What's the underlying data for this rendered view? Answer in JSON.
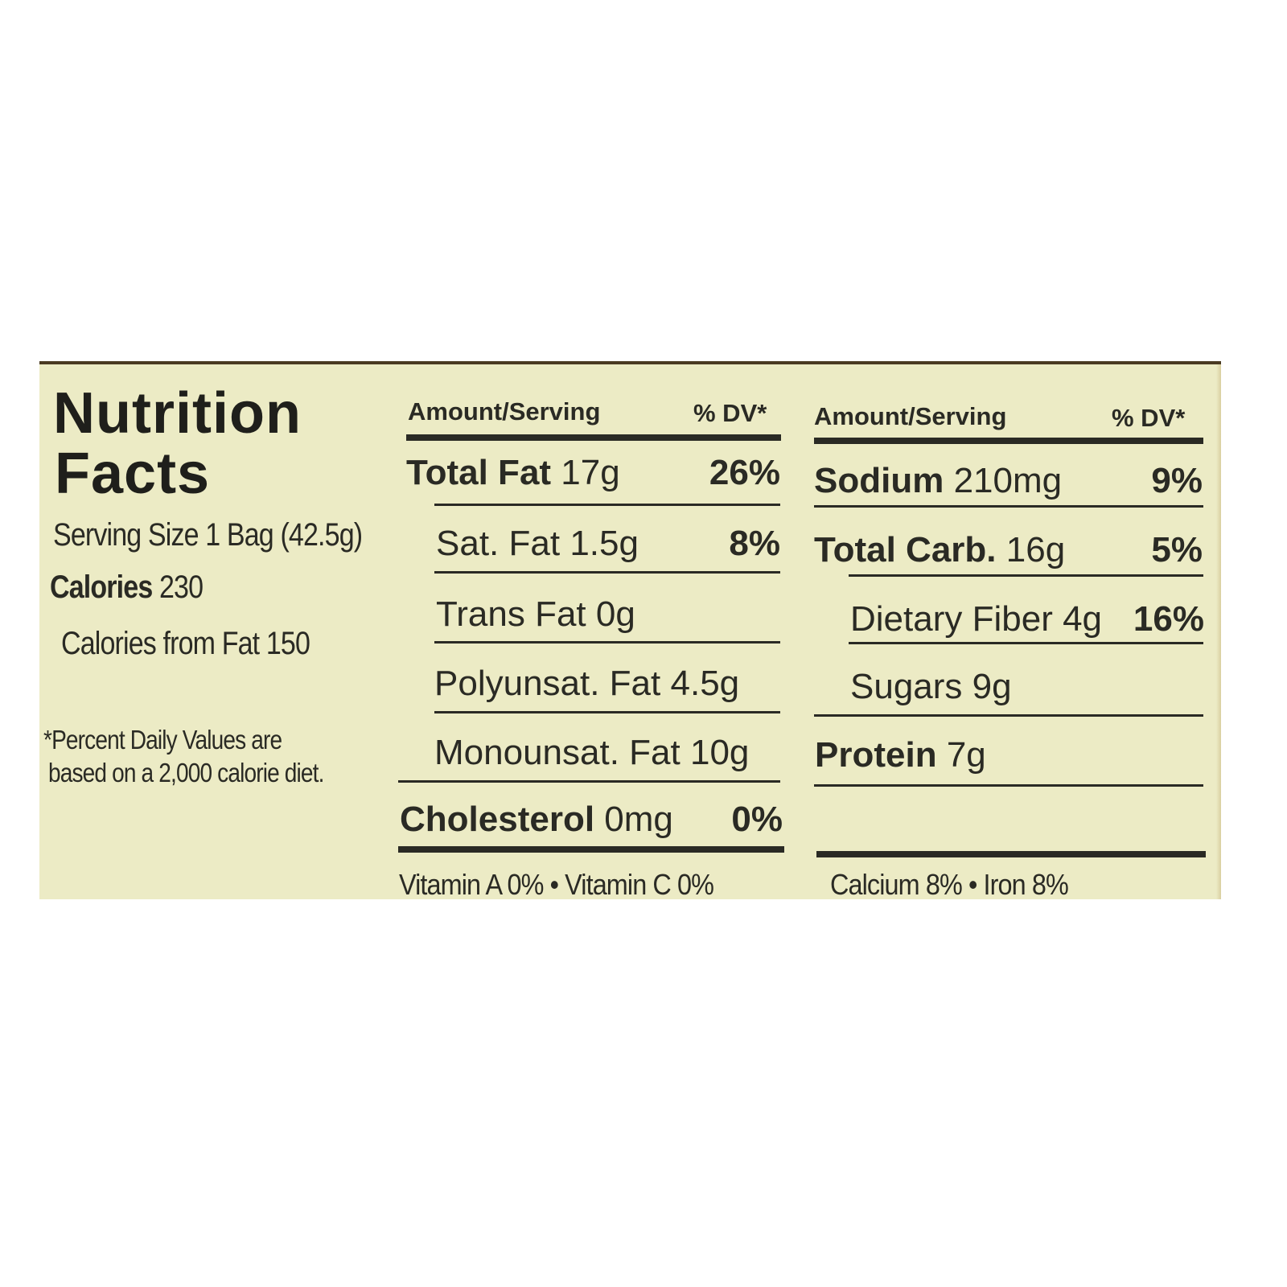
{
  "left": {
    "title_line1": "Nutrition",
    "title_line2": "Facts",
    "serving_size": "Serving Size 1 Bag (42.5g)",
    "calories_label": "Calories",
    "calories_value": "230",
    "calories_from_fat": "Calories from Fat 150",
    "footnote_line1": "*Percent Daily Values are",
    "footnote_line2": "based on a 2,000 calorie diet."
  },
  "middle": {
    "header_amount": "Amount/Serving",
    "header_dv": "% DV*",
    "rows": [
      {
        "name": "Total Fat",
        "amount": "17g",
        "dv": "26%",
        "bold": true
      },
      {
        "name": "Sat. Fat",
        "amount": "1.5g",
        "dv": "8%",
        "bold": false
      },
      {
        "name": "Trans Fat",
        "amount": "0g",
        "dv": "",
        "bold": false
      },
      {
        "name": "Polyunsat. Fat",
        "amount": "4.5g",
        "dv": "",
        "bold": false
      },
      {
        "name": "Monounsat. Fat",
        "amount": "10g",
        "dv": "",
        "bold": false
      },
      {
        "name": "Cholesterol",
        "amount": "0mg",
        "dv": "0%",
        "bold": true
      }
    ],
    "vitamins": "Vitamin A 0%  •  Vitamin C 0%"
  },
  "right": {
    "header_amount": "Amount/Serving",
    "header_dv": "% DV*",
    "rows": [
      {
        "name": "Sodium",
        "amount": "210mg",
        "dv": "9%",
        "bold": true
      },
      {
        "name": "Total Carb.",
        "amount": "16g",
        "dv": "5%",
        "bold": true
      },
      {
        "name": "Dietary Fiber",
        "amount": "4g",
        "dv": "16%",
        "bold": false
      },
      {
        "name": "Sugars",
        "amount": "9g",
        "dv": "",
        "bold": false
      },
      {
        "name": "Protein",
        "amount": "7g",
        "dv": "",
        "bold": true
      }
    ],
    "minerals": "Calcium 8%  •  Iron 8%"
  },
  "colors": {
    "label_background": "#ecebc5",
    "text": "#2a2a24",
    "package_edge": "#4a3a22"
  }
}
